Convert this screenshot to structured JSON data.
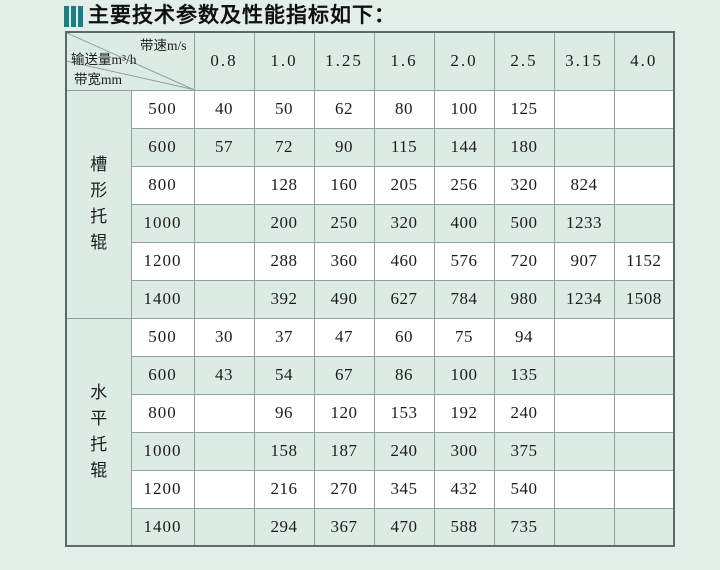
{
  "page": {
    "title": "主要技术参数及性能指标如下：",
    "title_icon": "triple-bars-icon",
    "colors": {
      "page_bg": "#e2efe9",
      "cell_tint": "#dcebe4",
      "cell_white": "#ffffff",
      "grid_line": "#93a0a0",
      "outer_border": "#5d6a6c",
      "accent_teal": "#1b8081",
      "text": "#1c1c1c"
    }
  },
  "table": {
    "corner": {
      "top_label": "带速m/s",
      "middle_label": "输送量m³/h",
      "bottom_label": "带宽mm"
    },
    "speed_headers": [
      "0.8",
      "1.0",
      "1.25",
      "1.6",
      "2.0",
      "2.5",
      "3.15",
      "4.0"
    ],
    "groups": [
      {
        "label": "槽形托辊",
        "rows": [
          {
            "width": "500",
            "values": [
              "40",
              "50",
              "62",
              "80",
              "100",
              "125",
              "",
              ""
            ]
          },
          {
            "width": "600",
            "values": [
              "57",
              "72",
              "90",
              "115",
              "144",
              "180",
              "",
              ""
            ]
          },
          {
            "width": "800",
            "values": [
              "",
              "128",
              "160",
              "205",
              "256",
              "320",
              "824",
              ""
            ]
          },
          {
            "width": "1000",
            "values": [
              "",
              "200",
              "250",
              "320",
              "400",
              "500",
              "1233",
              ""
            ]
          },
          {
            "width": "1200",
            "values": [
              "",
              "288",
              "360",
              "460",
              "576",
              "720",
              "907",
              "1152"
            ]
          },
          {
            "width": "1400",
            "values": [
              "",
              "392",
              "490",
              "627",
              "784",
              "980",
              "1234",
              "1508"
            ]
          }
        ]
      },
      {
        "label": "水平托辊",
        "rows": [
          {
            "width": "500",
            "values": [
              "30",
              "37",
              "47",
              "60",
              "75",
              "94",
              "",
              ""
            ]
          },
          {
            "width": "600",
            "values": [
              "43",
              "54",
              "67",
              "86",
              "100",
              "135",
              "",
              ""
            ]
          },
          {
            "width": "800",
            "values": [
              "",
              "96",
              "120",
              "153",
              "192",
              "240",
              "",
              ""
            ]
          },
          {
            "width": "1000",
            "values": [
              "",
              "158",
              "187",
              "240",
              "300",
              "375",
              "",
              ""
            ]
          },
          {
            "width": "1200",
            "values": [
              "",
              "216",
              "270",
              "345",
              "432",
              "540",
              "",
              ""
            ]
          },
          {
            "width": "1400",
            "values": [
              "",
              "294",
              "367",
              "470",
              "588",
              "735",
              "",
              ""
            ]
          }
        ]
      }
    ]
  }
}
